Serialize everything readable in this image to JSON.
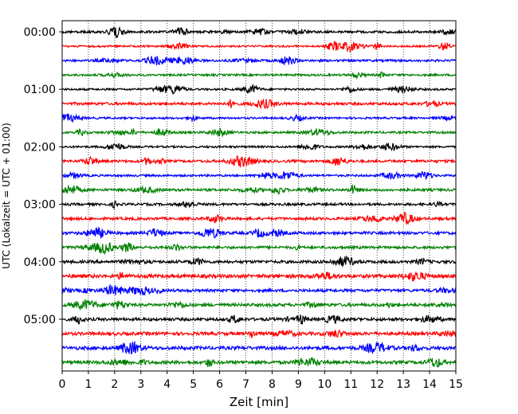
{
  "chart_data": {
    "type": "line",
    "title": "",
    "xlabel": "Zeit  [min]",
    "ylabel": "UTC (Lokalzeit = UTC + 01:00)",
    "xlim": [
      0,
      15
    ],
    "x_ticks": [
      "0",
      "1",
      "2",
      "3",
      "4",
      "5",
      "6",
      "7",
      "8",
      "9",
      "10",
      "11",
      "12",
      "13",
      "14",
      "15"
    ],
    "y_tick_labels": [
      "00:00",
      "01:00",
      "02:00",
      "03:00",
      "04:00",
      "05:00"
    ],
    "trace_interval_min": 15,
    "trace_count": 24,
    "trace_colors": [
      "#000000",
      "#ff0000",
      "#0000ff",
      "#008000"
    ],
    "grid": "vertical dotted lines at each minute"
  }
}
